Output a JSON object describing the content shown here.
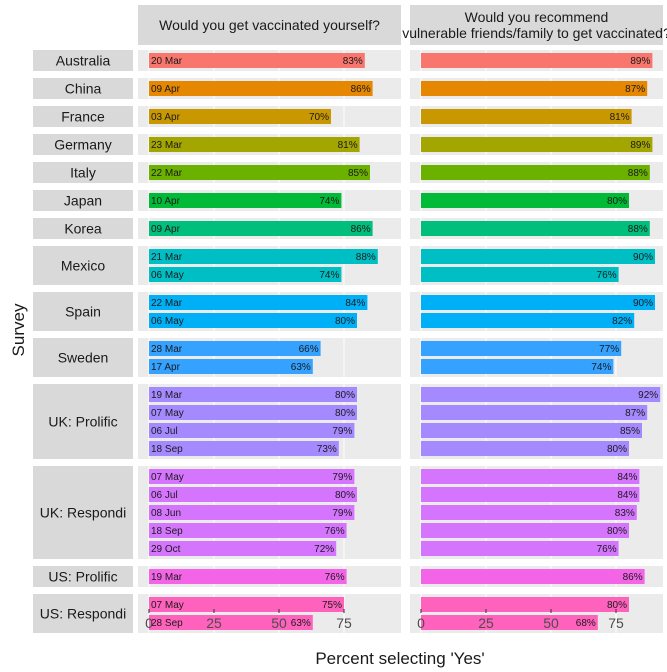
{
  "chart_data": {
    "type": "bar",
    "orientation": "horizontal",
    "facet_titles": [
      "Would you get vaccinated yourself?",
      "Would you recommend vulnerable friends/family to get vaccinated?"
    ],
    "xlabel": "Percent selecting 'Yes'",
    "ylabel": "Survey",
    "xlim": [
      0,
      92
    ],
    "xticks": [
      0,
      25,
      50,
      75
    ],
    "groups": [
      {
        "name": "Australia",
        "color": "#F8766D",
        "bars": [
          {
            "date": "20 Mar",
            "self": 83,
            "recommend": 89
          }
        ]
      },
      {
        "name": "China",
        "color": "#E58700",
        "bars": [
          {
            "date": "09 Apr",
            "self": 86,
            "recommend": 87
          }
        ]
      },
      {
        "name": "France",
        "color": "#C99800",
        "bars": [
          {
            "date": "03 Apr",
            "self": 70,
            "recommend": 81
          }
        ]
      },
      {
        "name": "Germany",
        "color": "#A3A500",
        "bars": [
          {
            "date": "23 Mar",
            "self": 81,
            "recommend": 89
          }
        ]
      },
      {
        "name": "Italy",
        "color": "#6BB100",
        "bars": [
          {
            "date": "22 Mar",
            "self": 85,
            "recommend": 88
          }
        ]
      },
      {
        "name": "Japan",
        "color": "#00BA38",
        "bars": [
          {
            "date": "10 Apr",
            "self": 74,
            "recommend": 80
          }
        ]
      },
      {
        "name": "Korea",
        "color": "#00BF7D",
        "bars": [
          {
            "date": "09 Apr",
            "self": 86,
            "recommend": 88
          }
        ]
      },
      {
        "name": "Mexico",
        "color": "#00BFC4",
        "bars": [
          {
            "date": "21 Mar",
            "self": 88,
            "recommend": 90
          },
          {
            "date": "06 May",
            "self": 74,
            "recommend": 76
          }
        ]
      },
      {
        "name": "Spain",
        "color": "#00B0F6",
        "bars": [
          {
            "date": "22 Mar",
            "self": 84,
            "recommend": 90
          },
          {
            "date": "06 May",
            "self": 80,
            "recommend": 82
          }
        ]
      },
      {
        "name": "Sweden",
        "color": "#35A2FF",
        "bars": [
          {
            "date": "28 Mar",
            "self": 66,
            "recommend": 77
          },
          {
            "date": "17 Apr",
            "self": 63,
            "recommend": 74
          }
        ]
      },
      {
        "name": "UK: Prolific",
        "color": "#A58AFF",
        "bars": [
          {
            "date": "19 Mar",
            "self": 80,
            "recommend": 92
          },
          {
            "date": "07 May",
            "self": 80,
            "recommend": 87
          },
          {
            "date": "06 Jul",
            "self": 79,
            "recommend": 85
          },
          {
            "date": "18 Sep",
            "self": 73,
            "recommend": 80
          }
        ]
      },
      {
        "name": "UK: Respondi",
        "color": "#D575FE",
        "bars": [
          {
            "date": "07 May",
            "self": 79,
            "recommend": 84
          },
          {
            "date": "06 Jul",
            "self": 80,
            "recommend": 84
          },
          {
            "date": "08 Jun",
            "self": 79,
            "recommend": 83
          },
          {
            "date": "18 Sep",
            "self": 76,
            "recommend": 80
          },
          {
            "date": "29 Oct",
            "self": 72,
            "recommend": 76
          }
        ]
      },
      {
        "name": "US: Prolific",
        "color": "#F365E6",
        "bars": [
          {
            "date": "19 Mar",
            "self": 76,
            "recommend": 86
          }
        ]
      },
      {
        "name": "US: Respondi",
        "color": "#FF62BC",
        "bars": [
          {
            "date": "07 May",
            "self": 75,
            "recommend": 80
          },
          {
            "date": "28 Sep",
            "self": 63,
            "recommend": 68
          }
        ]
      }
    ]
  }
}
